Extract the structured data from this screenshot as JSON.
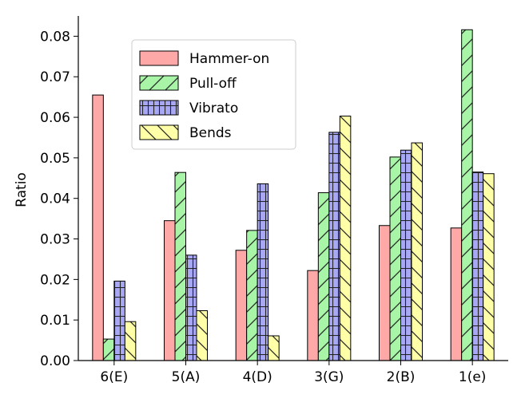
{
  "chart_data": {
    "type": "bar",
    "categories": [
      "6(E)",
      "5(A)",
      "4(D)",
      "3(G)",
      "2(B)",
      "1(e)"
    ],
    "series": [
      {
        "name": "Hammer-on",
        "values": [
          0.0655,
          0.0345,
          0.0272,
          0.0222,
          0.0333,
          0.0327
        ],
        "color": "#ffa8a8",
        "hatch": "none"
      },
      {
        "name": "Pull-off",
        "values": [
          0.0053,
          0.0464,
          0.0321,
          0.0414,
          0.0502,
          0.0816
        ],
        "color": "#a8f5a8",
        "hatch": "diagonal"
      },
      {
        "name": "Vibrato",
        "values": [
          0.0196,
          0.026,
          0.0436,
          0.0563,
          0.0519,
          0.0465
        ],
        "color": "#a8a8f5",
        "hatch": "grid"
      },
      {
        "name": "Bends",
        "values": [
          0.0096,
          0.0123,
          0.0061,
          0.0603,
          0.0537,
          0.0461
        ],
        "color": "#ffffa8",
        "hatch": "backdiagonal"
      }
    ],
    "title": "",
    "xlabel": "",
    "ylabel": "Ratio",
    "ylim": [
      0,
      0.085
    ],
    "yticks": [
      "0.00",
      "0.01",
      "0.02",
      "0.03",
      "0.04",
      "0.05",
      "0.06",
      "0.07",
      "0.08"
    ],
    "grid": false,
    "legend_position": "upper-left"
  }
}
